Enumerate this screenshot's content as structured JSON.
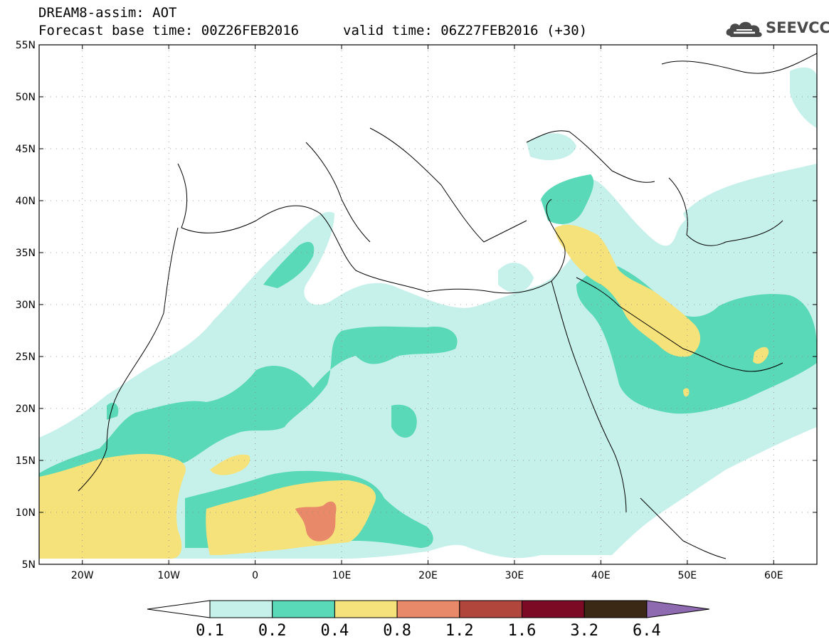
{
  "header": {
    "title_line1": "DREAM8-assim: AOT",
    "base_time": "Forecast base time: 00Z26FEB2016",
    "valid_time": "valid time: 06Z27FEB2016 (+30)"
  },
  "logo": {
    "text": "SEEVCCC",
    "icon": "cloud-icon"
  },
  "map": {
    "lat_labels": [
      "55N",
      "50N",
      "45N",
      "40N",
      "35N",
      "30N",
      "25N",
      "20N",
      "15N",
      "10N",
      "5N"
    ],
    "lon_labels": [
      "20W",
      "10W",
      "0",
      "10E",
      "20E",
      "30E",
      "40E",
      "50E",
      "60E"
    ],
    "grid": "dotted"
  },
  "colorbar": {
    "labels": [
      "0.1",
      "0.2",
      "0.4",
      "0.8",
      "1.2",
      "1.6",
      "3.2",
      "6.4"
    ],
    "colors": [
      "#ffffff",
      "#c6f0ea",
      "#5ad9b8",
      "#f6e27a",
      "#e8896a",
      "#b0463c",
      "#7d0a25",
      "#3b2815",
      "#8e6bb0"
    ]
  },
  "colors": {
    "aot_0.1": "#c6f0ea",
    "aot_0.2": "#5ad9b8",
    "aot_0.4": "#f6e27a",
    "aot_0.8": "#e8896a"
  }
}
